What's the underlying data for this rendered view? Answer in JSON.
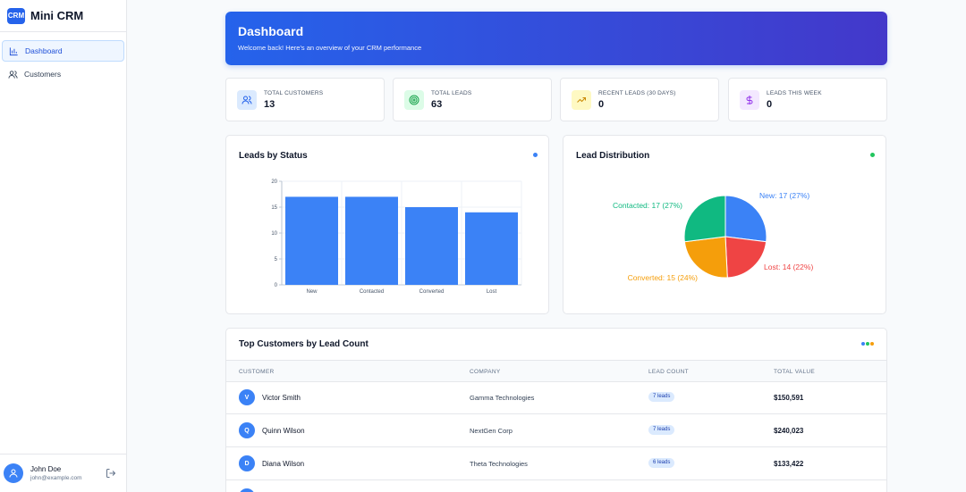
{
  "brand": {
    "logo_text": "CRM",
    "name": "Mini CRM"
  },
  "sidebar": {
    "items": [
      {
        "label": "Dashboard",
        "icon": "bar-chart-icon",
        "active": true
      },
      {
        "label": "Customers",
        "icon": "users-icon",
        "active": false
      }
    ]
  },
  "user": {
    "name": "John Doe",
    "email": "john@example.com"
  },
  "hero": {
    "title": "Dashboard",
    "subtitle": "Welcome back! Here's an overview of your CRM performance"
  },
  "stats": [
    {
      "label": "TOTAL CUSTOMERS",
      "value": "13",
      "icon": "users-icon",
      "color": "#2563eb",
      "bg": "#dbeafe"
    },
    {
      "label": "TOTAL LEADS",
      "value": "63",
      "icon": "target-icon",
      "color": "#16a34a",
      "bg": "#dcfce7"
    },
    {
      "label": "RECENT LEADS (30 DAYS)",
      "value": "0",
      "icon": "trending-up-icon",
      "color": "#ca8a04",
      "bg": "#fef9c3"
    },
    {
      "label": "LEADS THIS WEEK",
      "value": "0",
      "icon": "dollar-icon",
      "color": "#9333ea",
      "bg": "#f3e8ff"
    }
  ],
  "chart_data": [
    {
      "type": "bar",
      "title": "Leads by Status",
      "categories": [
        "New",
        "Contacted",
        "Converted",
        "Lost"
      ],
      "values": [
        17,
        17,
        15,
        14
      ],
      "ylim": [
        0,
        20
      ],
      "yticks": [
        0,
        5,
        10,
        15,
        20
      ],
      "color": "#3b82f6",
      "grid": true
    },
    {
      "type": "pie",
      "title": "Lead Distribution",
      "slices": [
        {
          "label": "New: 17 (27%)",
          "value": 17,
          "color": "#3b82f6"
        },
        {
          "label": "Lost: 14 (22%)",
          "value": 14,
          "color": "#ef4444"
        },
        {
          "label": "Converted: 15 (24%)",
          "value": 15,
          "color": "#f59e0b"
        },
        {
          "label": "Contacted: 17 (27%)",
          "value": 17,
          "color": "#10b981"
        }
      ]
    }
  ],
  "table": {
    "title": "Top Customers by Lead Count",
    "columns": [
      "CUSTOMER",
      "COMPANY",
      "LEAD COUNT",
      "TOTAL VALUE"
    ],
    "rows": [
      {
        "initial": "V",
        "name": "Victor Smith",
        "company": "Gamma Technologies",
        "leads": "7 leads",
        "value": "$150,591"
      },
      {
        "initial": "Q",
        "name": "Quinn Wilson",
        "company": "NextGen Corp",
        "leads": "7 leads",
        "value": "$240,023"
      },
      {
        "initial": "D",
        "name": "Diana Wilson",
        "company": "Theta Technologies",
        "leads": "6 leads",
        "value": "$133,422"
      }
    ]
  },
  "colors": {
    "accent": "#2563eb",
    "bar_dot": "#3b82f6",
    "pie_dot": "#22c55e",
    "menu_dots": [
      "#3b82f6",
      "#22c55e",
      "#f59e0b"
    ]
  }
}
